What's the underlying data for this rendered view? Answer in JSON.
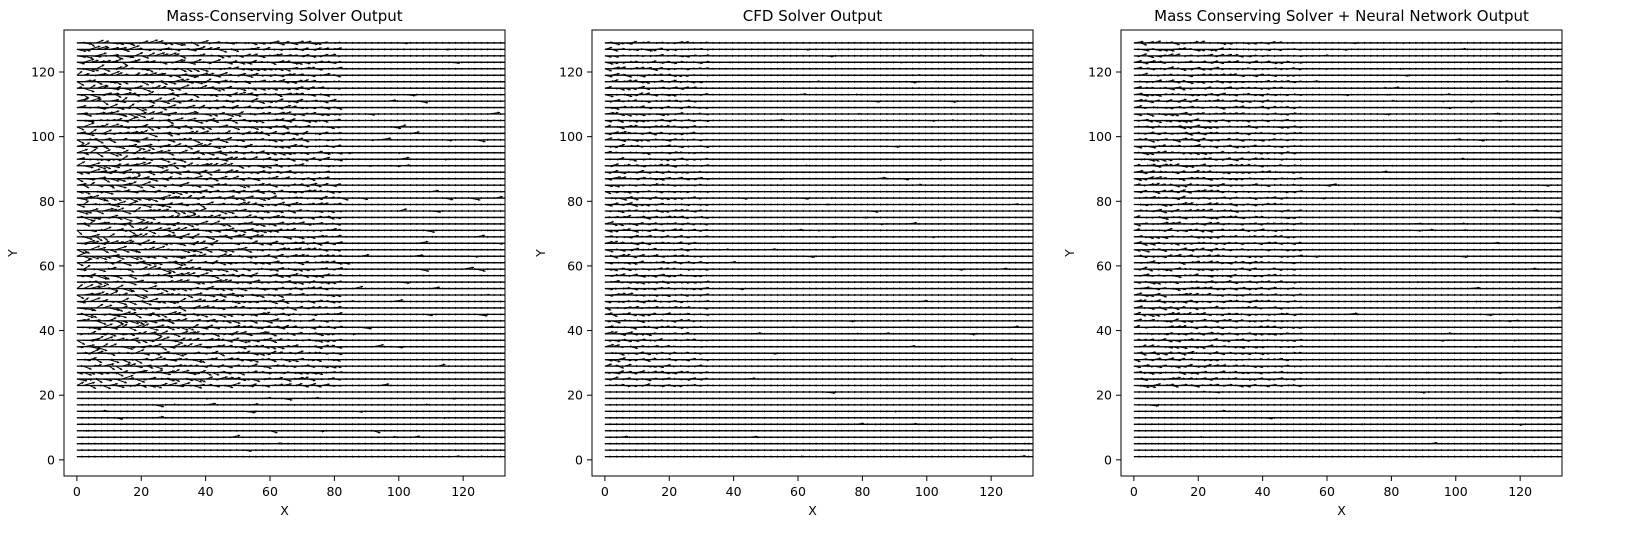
{
  "chart_data": [
    {
      "type": "quiver",
      "title": "Mass-Conserving Solver Output",
      "xlabel": "X",
      "ylabel": "Y",
      "xlim": [
        -4,
        133
      ],
      "ylim": [
        -5,
        133
      ],
      "xticks": [
        0,
        20,
        40,
        60,
        80,
        100,
        120
      ],
      "yticks": [
        0,
        20,
        40,
        60,
        80,
        100,
        120
      ],
      "grid": false,
      "field": {
        "rows_y": [
          1,
          129
        ],
        "row_count": 65,
        "x_range": [
          0,
          133
        ],
        "dominant_direction": "+x",
        "turbulence": "high",
        "turbulent_region": {
          "x": [
            0,
            80
          ],
          "y": [
            22,
            129
          ]
        }
      },
      "color": "#000000"
    },
    {
      "type": "quiver",
      "title": "CFD Solver Output",
      "xlabel": "X",
      "ylabel": "Y",
      "xlim": [
        -4,
        133
      ],
      "ylim": [
        -5,
        133
      ],
      "xticks": [
        0,
        20,
        40,
        60,
        80,
        100,
        120
      ],
      "yticks": [
        0,
        20,
        40,
        60,
        80,
        100,
        120
      ],
      "grid": false,
      "field": {
        "rows_y": [
          1,
          129
        ],
        "row_count": 65,
        "x_range": [
          0,
          133
        ],
        "dominant_direction": "+x",
        "turbulence": "medium",
        "turbulent_region": {
          "x": [
            0,
            30
          ],
          "y": [
            22,
            129
          ]
        }
      },
      "color": "#000000"
    },
    {
      "type": "quiver",
      "title": "Mass Conserving Solver + Neural Network Output",
      "xlabel": "X",
      "ylabel": "Y",
      "xlim": [
        -4,
        133
      ],
      "ylim": [
        -5,
        133
      ],
      "xticks": [
        0,
        20,
        40,
        60,
        80,
        100,
        120
      ],
      "yticks": [
        0,
        20,
        40,
        60,
        80,
        100,
        120
      ],
      "grid": false,
      "field": {
        "rows_y": [
          1,
          129
        ],
        "row_count": 65,
        "x_range": [
          0,
          133
        ],
        "dominant_direction": "+x",
        "turbulence": "medium",
        "turbulent_region": {
          "x": [
            0,
            50
          ],
          "y": [
            22,
            129
          ]
        }
      },
      "color": "#000000"
    }
  ]
}
